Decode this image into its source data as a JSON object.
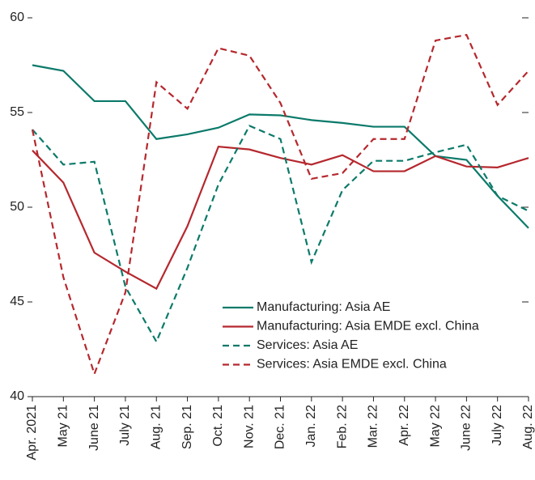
{
  "chart_data": {
    "type": "line",
    "categories": [
      "Apr. 2021",
      "May 21",
      "June 21",
      "July 21",
      "Aug. 21",
      "Sep. 21",
      "Oct. 21",
      "Nov. 21",
      "Dec. 21",
      "Jan. 22",
      "Feb. 22",
      "Mar. 22",
      "Apr. 22",
      "May 22",
      "June 22",
      "July 22",
      "Aug. 22"
    ],
    "series": [
      {
        "name": "Manufacturing: Asia AE",
        "color": "#0b7a6a",
        "dashed": false,
        "values": [
          57.5,
          57.2,
          55.6,
          55.6,
          53.6,
          53.85,
          54.2,
          54.9,
          54.85,
          54.6,
          54.45,
          54.25,
          54.25,
          52.7,
          52.5,
          50.6,
          48.9
        ]
      },
      {
        "name": "Manufacturing: Asia EMDE excl. China",
        "color": "#b5282e",
        "dashed": false,
        "values": [
          53.0,
          51.3,
          47.6,
          46.6,
          45.7,
          49.0,
          53.2,
          53.05,
          52.6,
          52.25,
          52.75,
          51.9,
          51.9,
          52.7,
          52.15,
          52.1,
          52.6
        ]
      },
      {
        "name": "Services: Asia AE",
        "color": "#0b7a6a",
        "dashed": true,
        "values": [
          54.1,
          52.25,
          52.4,
          45.8,
          42.9,
          46.8,
          51.2,
          54.3,
          53.6,
          47.1,
          50.9,
          52.45,
          52.45,
          52.9,
          53.3,
          50.6,
          49.8
        ]
      },
      {
        "name": "Services: Asia EMDE excl. China",
        "color": "#b5282e",
        "dashed": true,
        "values": [
          54.1,
          46.3,
          41.2,
          45.5,
          56.6,
          55.2,
          58.4,
          58.0,
          55.5,
          51.5,
          51.8,
          53.6,
          53.6,
          58.8,
          59.1,
          55.4,
          57.2
        ]
      }
    ],
    "ylim": [
      40,
      60
    ],
    "yticks": [
      40,
      45,
      50,
      55,
      60
    ],
    "grid": false
  }
}
